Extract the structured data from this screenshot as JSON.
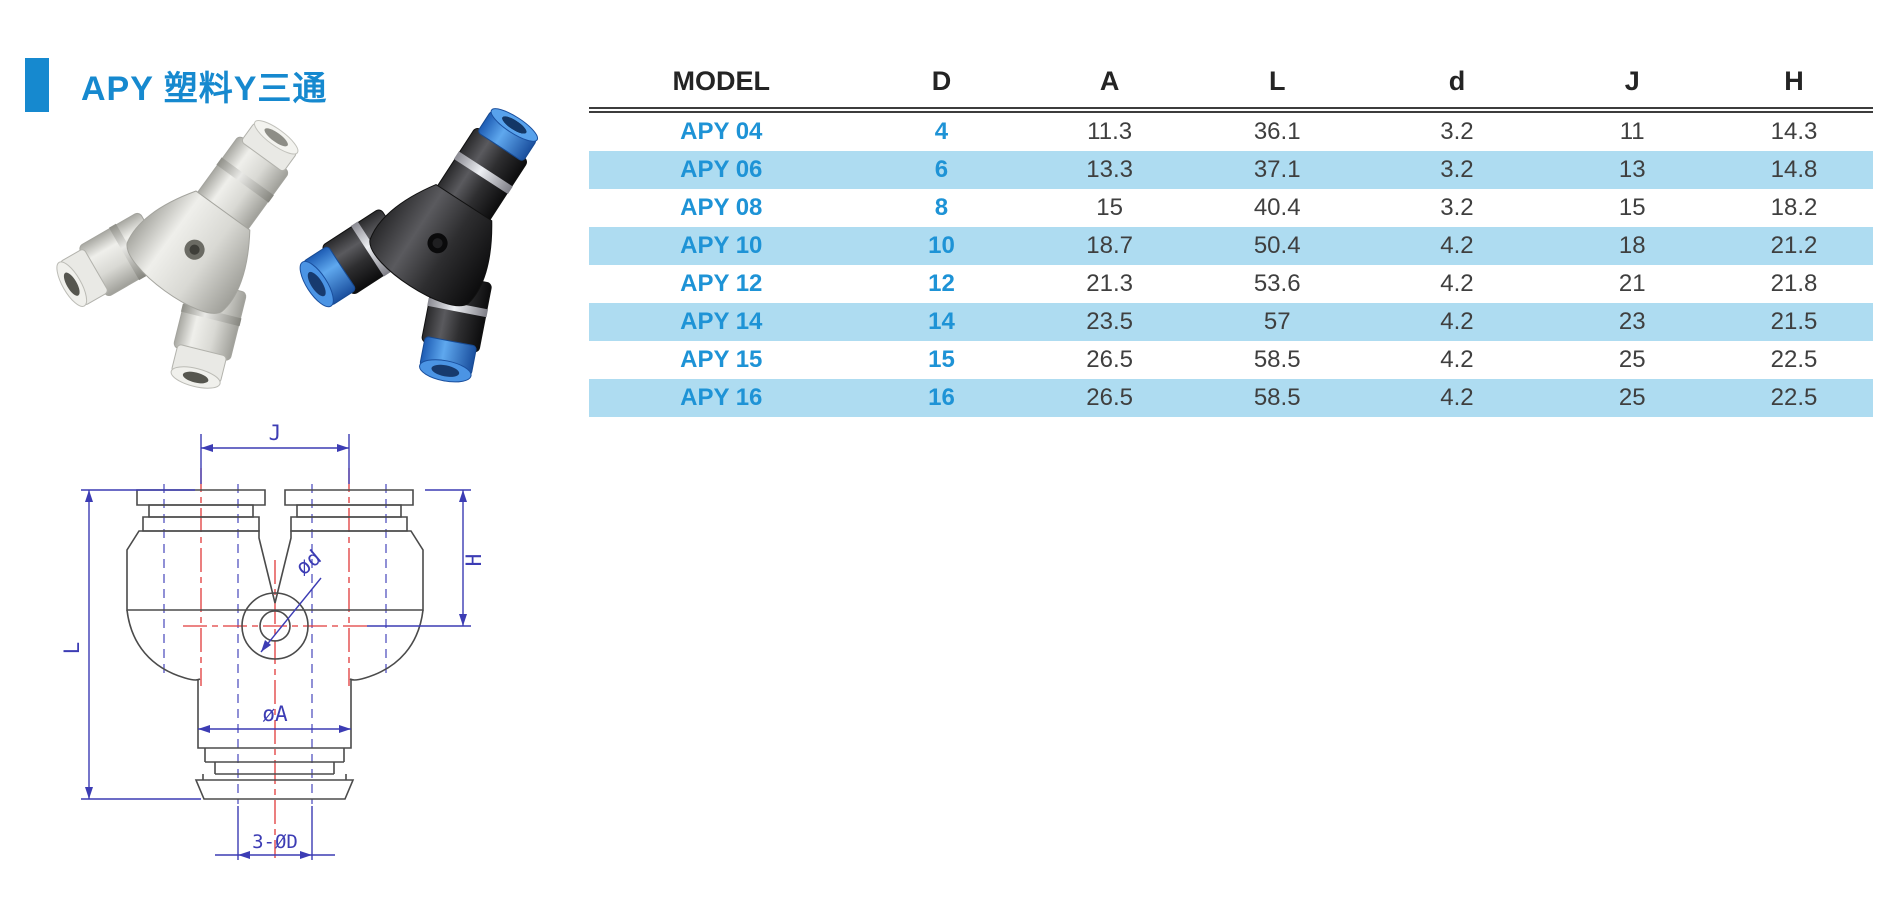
{
  "title": "APY 塑料Y三通",
  "colors": {
    "accent_blue": "#1689cf",
    "model_blue": "#1e93d6",
    "stripe_blue": "#aedcf1",
    "header_text": "#242424",
    "cell_text": "#3f3f3f",
    "drawing_dimension_blue": "#3c3cb4",
    "drawing_centerline_red": "#e03a3a",
    "drawing_outline_gray": "#4b4b4b"
  },
  "table": {
    "columns": [
      "MODEL",
      "D",
      "A",
      "L",
      "d",
      "J",
      "H"
    ],
    "rows": [
      [
        "APY 04",
        "4",
        "11.3",
        "36.1",
        "3.2",
        "11",
        "14.3"
      ],
      [
        "APY 06",
        "6",
        "13.3",
        "37.1",
        "3.2",
        "13",
        "14.8"
      ],
      [
        "APY 08",
        "8",
        "15",
        "40.4",
        "3.2",
        "15",
        "18.2"
      ],
      [
        "APY 10",
        "10",
        "18.7",
        "50.4",
        "4.2",
        "18",
        "21.2"
      ],
      [
        "APY 12",
        "12",
        "21.3",
        "53.6",
        "4.2",
        "21",
        "21.8"
      ],
      [
        "APY 14",
        "14",
        "23.5",
        "57",
        "4.2",
        "23",
        "21.5"
      ],
      [
        "APY 15",
        "15",
        "26.5",
        "58.5",
        "4.2",
        "25",
        "22.5"
      ],
      [
        "APY 16",
        "16",
        "26.5",
        "58.5",
        "4.2",
        "25",
        "22.5"
      ]
    ]
  },
  "drawing": {
    "labels": {
      "j": "J",
      "l": "L",
      "h": "H",
      "od": "ød",
      "oa": "øA",
      "bottom": "3-ØD"
    }
  },
  "icons": {
    "accent_bar": "blue-accent-bar",
    "photo_grey": "grey-y-fitting-photo",
    "photo_black": "black-y-fitting-photo"
  }
}
